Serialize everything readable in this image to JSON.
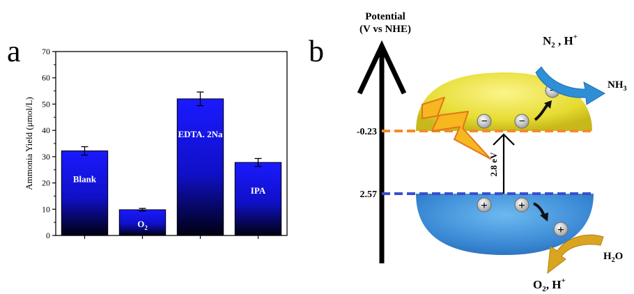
{
  "panels": {
    "a_label": "a",
    "b_label": "b"
  },
  "chart_data": {
    "type": "bar",
    "ylabel": "Ammonia Yield (μmol/L)",
    "ylim": [
      0,
      70
    ],
    "yticks": [
      0,
      10,
      20,
      30,
      40,
      50,
      60,
      70
    ],
    "categories": [
      {
        "main": "Blank",
        "sub": ""
      },
      {
        "main": "O",
        "sub": "2"
      },
      {
        "main": "EDTA. 2Na",
        "sub": ""
      },
      {
        "main": "IPA",
        "sub": ""
      }
    ],
    "values": [
      32.2,
      9.8,
      52.0,
      27.8
    ],
    "errors": [
      1.6,
      0.5,
      2.6,
      1.5
    ],
    "bar_color_top": "#1a1aff",
    "bar_color_bottom": "#000010"
  },
  "diagram": {
    "axis_title_line1": "Potential",
    "axis_title_line2": "(V vs NHE)",
    "cb_value": "-0.23",
    "vb_value": "2.57",
    "gap_label": "2.8 eV",
    "electron_symbol": "−",
    "hole_symbol": "+",
    "reactant_top": "N",
    "reactant_top_sub": "2",
    "reactant_top_rest": " , H",
    "reactant_top_sup": "+",
    "product_top": "NH",
    "product_top_sub": "3",
    "reactant_bottom": "H",
    "reactant_bottom_sub": "2",
    "reactant_bottom_rest": "O",
    "product_bottom": "O",
    "product_bottom_sub": "2",
    "product_bottom_rest": ", H",
    "product_bottom_sup": "+",
    "colors": {
      "cb_line": "#f28c28",
      "vb_line": "#3a4fcf",
      "top_ellipse": "#e8e23a",
      "bottom_ellipse": "#3f8fd8",
      "arrow_blue": "#2e8fd6",
      "arrow_gold": "#d9a520",
      "lightning": "#f7b71e"
    }
  }
}
